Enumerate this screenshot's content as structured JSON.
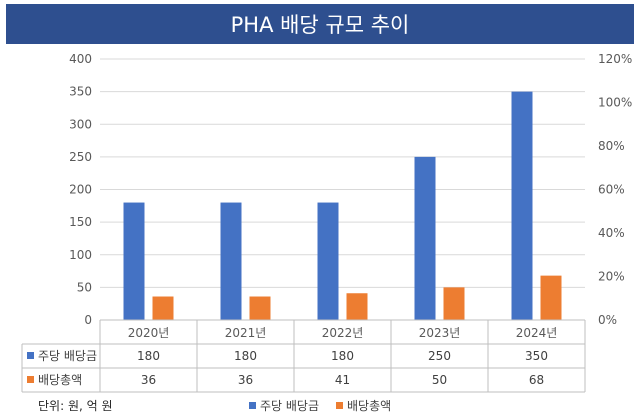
{
  "title": "PHA 배당 규모 추이",
  "unit_note": "단위: 원, 억 원",
  "colors": {
    "title_bg": "#2e4f8f",
    "series1": "#4472c4",
    "series2": "#ed7d31"
  },
  "chart_data": {
    "type": "bar",
    "title": "PHA 배당 규모 추이",
    "categories": [
      "2020년",
      "2021년",
      "2022년",
      "2023년",
      "2024년"
    ],
    "series": [
      {
        "name": "주당 배당금",
        "values": [
          180,
          180,
          180,
          250,
          350
        ]
      },
      {
        "name": "배당총액",
        "values": [
          36,
          36,
          41,
          50,
          68
        ]
      }
    ],
    "ylim": [
      0,
      400
    ],
    "yticks": [
      "0",
      "50",
      "100",
      "150",
      "200",
      "250",
      "300",
      "350",
      "400"
    ],
    "y2lim": [
      0,
      1.2
    ],
    "y2ticks": [
      "0%",
      "20%",
      "40%",
      "60%",
      "80%",
      "100%",
      "120%"
    ],
    "grid": true,
    "legend": "bottom",
    "data_table": true
  }
}
